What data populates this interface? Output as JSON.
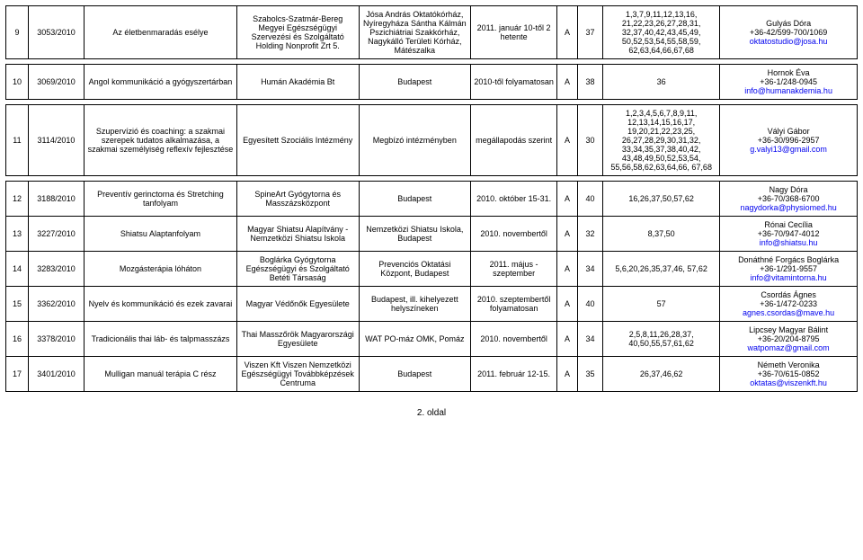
{
  "footer": "2. oldal",
  "colors": {
    "link": "#0000ee",
    "border": "#000000",
    "text": "#000000",
    "bg": "#ffffff"
  },
  "rows": [
    {
      "n": "9",
      "reg": "3053/2010",
      "title": "Az életbenmaradás esélye",
      "org": "Szabolcs-Szatmár-Bereg Megyei Egészségügyi Szervezési és Szolgáltató Holding Nonprofit Zrt 5.",
      "loc": "Jósa András Oktatókórház, Nyíregyháza Sántha Kálmán Pszichiátriai Szakkórház, Nagykálló Területi Kórház, Mátészalka",
      "date": "2011. január 10-től 2 hetente",
      "lvl": "A",
      "pts": "37",
      "codes": "1,3,7,9,11,12,13,16, 21,22,23,26,27,28,31, 32,37,40,42,43,45,49, 50,52,53,54,55,58,59, 62,63,64,66,67,68",
      "contact_name": "Gulyás Dóra",
      "contact_phone": "+36-42/599-700/1069",
      "contact_email": "oktatostudio@josa.hu"
    },
    {
      "n": "10",
      "reg": "3069/2010",
      "title": "Angol kommunikáció a gyógyszertárban",
      "org": "Humán Akadémia Bt",
      "loc": "Budapest",
      "date": "2010-től folyamatosan",
      "lvl": "A",
      "pts": "38",
      "codes": "36",
      "contact_name": "Hornok Éva",
      "contact_phone": "+36-1/248-0945",
      "contact_email": "info@humanakdemia.hu"
    },
    {
      "n": "11",
      "reg": "3114/2010",
      "title": "Szupervízió és coaching: a szakmai szerepek tudatos alkalmazása, a szakmai személyiség reflexív fejlesztése",
      "org": "Egyesített Szociális Intézmény",
      "loc": "Megbízó intézményben",
      "date": "megállapodás szerint",
      "lvl": "A",
      "pts": "30",
      "codes": "1,2,3,4,5,6,7,8,9,11, 12,13,14,15,16,17, 19,20,21,22,23,25, 26,27,28,29,30,31,32, 33,34,35,37,38,40,42, 43,48,49,50,52,53,54, 55,56,58,62,63,64,66, 67,68",
      "contact_name": "Vályi Gábor",
      "contact_phone": "+36-30/996-2957",
      "contact_email": "g.valyi13@gmail.com"
    },
    {
      "n": "12",
      "reg": "3188/2010",
      "title": "Preventív gerinctorna és Stretching tanfolyam",
      "org": "SpineArt Gyógytorna és Masszázsközpont",
      "loc": "Budapest",
      "date": "2010. október 15-31.",
      "lvl": "A",
      "pts": "40",
      "codes": "16,26,37,50,57,62",
      "contact_name": "Nagy Dóra",
      "contact_phone": "+36-70/368-6700",
      "contact_email": "nagydorka@physiomed.hu"
    },
    {
      "n": "13",
      "reg": "3227/2010",
      "title": "Shiatsu Alaptanfolyam",
      "org": "Magyar Shiatsu Alapítvány - Nemzetközi Shiatsu Iskola",
      "loc": "Nemzetközi Shiatsu Iskola, Budapest",
      "date": "2010. novembertől",
      "lvl": "A",
      "pts": "32",
      "codes": "8,37,50",
      "contact_name": "Rónai Cecília",
      "contact_phone": "+36-70/947-4012",
      "contact_email": "info@shiatsu.hu"
    },
    {
      "n": "14",
      "reg": "3283/2010",
      "title": "Mozgásterápia lóháton",
      "org": "Boglárka Gyógytorna Egészségügyi és Szolgáltató Betéti Társaság",
      "loc": "Prevenciós Oktatási Központ, Budapest",
      "date": "2011. május - szeptember",
      "lvl": "A",
      "pts": "34",
      "codes": "5,6,20,26,35,37,46, 57,62",
      "contact_name": "Donáthné Forgács Boglárka",
      "contact_phone": "+36-1/291-9557",
      "contact_email": "info@vitamintorna.hu"
    },
    {
      "n": "15",
      "reg": "3362/2010",
      "title": "Nyelv és kommunikáció és ezek zavarai",
      "org": "Magyar Védőnők Egyesülete",
      "loc": "Budapest, ill. kihelyezett helyszíneken",
      "date": "2010. szeptembertől folyamatosan",
      "lvl": "A",
      "pts": "40",
      "codes": "57",
      "contact_name": "Csordás Ágnes",
      "contact_phone": "+36-1/472-0233",
      "contact_email": "agnes.csordas@mave.hu"
    },
    {
      "n": "16",
      "reg": "3378/2010",
      "title": "Tradicionális thai láb- és talpmasszázs",
      "org": "Thai Masszőrök Magyarországi Egyesülete",
      "loc": "WAT PO-máz OMK, Pomáz",
      "date": "2010. novembertől",
      "lvl": "A",
      "pts": "34",
      "codes": "2,5,8,11,26,28,37, 40,50,55,57,61,62",
      "contact_name": "Lipcsey Magyar Bálint",
      "contact_phone": "+36-20/204-8795",
      "contact_email": "watpomaz@gmail.com"
    },
    {
      "n": "17",
      "reg": "3401/2010",
      "title": "Mulligan manuál terápia C rész",
      "org": "Viszen Kft Viszen Nemzetközi Egészségügyi Továbbképzések Centruma",
      "loc": "Budapest",
      "date": "2011. február 12-15.",
      "lvl": "A",
      "pts": "35",
      "codes": "26,37,46,62",
      "contact_name": "Németh Veronika",
      "contact_phone": "+36-70/615-0852",
      "contact_email": "oktatas@viszenkft.hu"
    }
  ]
}
